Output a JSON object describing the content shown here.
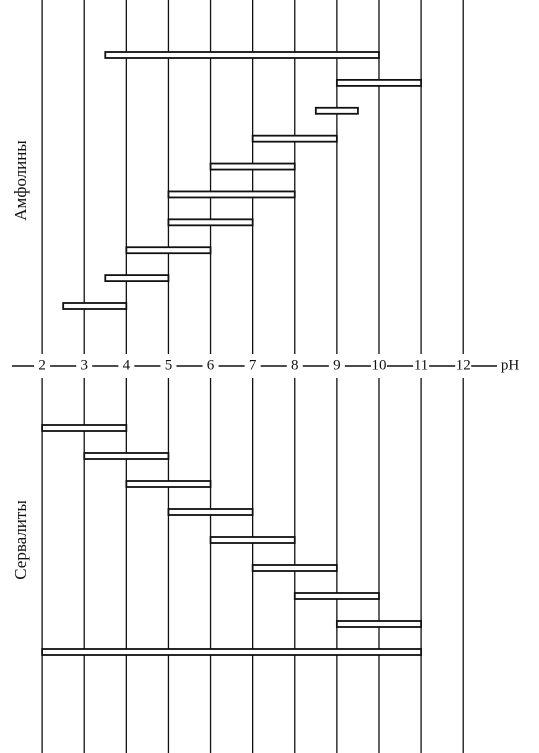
{
  "chart_data": {
    "type": "range",
    "xlabel": "pH",
    "xlim": [
      1,
      13.8
    ],
    "xticks": [
      2,
      3,
      4,
      5,
      6,
      7,
      8,
      9,
      10,
      11,
      12
    ],
    "grid": true,
    "series": [
      {
        "name": "Амфолины",
        "color": "#111111",
        "low": [
          3.5,
          9,
          8.5,
          7,
          6,
          5,
          5,
          4,
          3.5,
          2.5
        ],
        "high": [
          10,
          11,
          9.5,
          9,
          8,
          8,
          7,
          6,
          5,
          4
        ]
      },
      {
        "name": "Сервалиты",
        "color": "#111111",
        "low": [
          2,
          3,
          4,
          5,
          6,
          7,
          8,
          9,
          2
        ],
        "high": [
          4,
          5,
          6,
          7,
          8,
          9,
          10,
          11,
          11
        ]
      }
    ]
  }
}
